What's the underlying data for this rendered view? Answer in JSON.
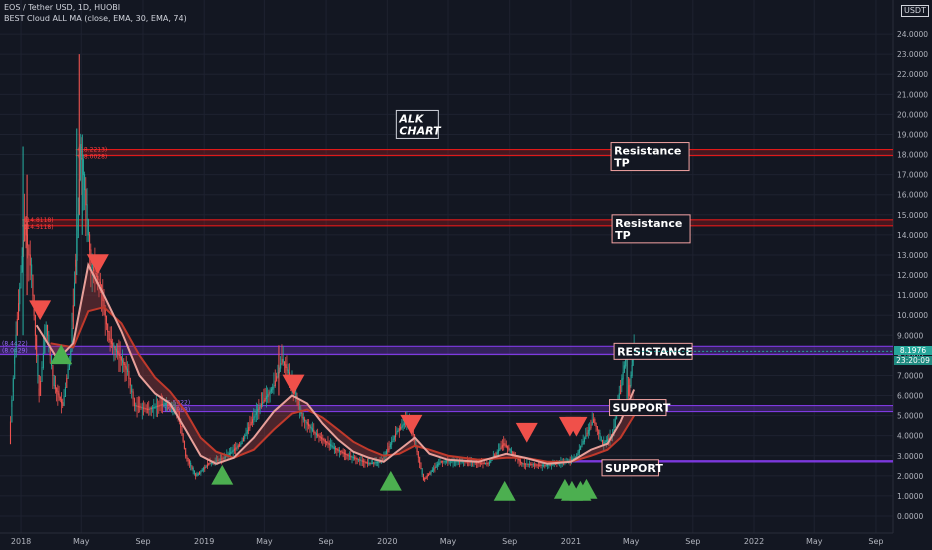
{
  "header": {
    "line1": "EOS / Tether USD, 1D, HUOBI",
    "line2": "BEST Cloud ALL MA (close, EMA, 30, EMA, 74)"
  },
  "unit_label": "USDT",
  "current_price": "8.1976",
  "countdown": "23:20:09",
  "colors": {
    "background": "#131722",
    "resistance": "#e01919",
    "band": "#7e3ae0",
    "up": "#26a69a",
    "down": "#ef5350",
    "cloud_fast": "#e8a09a",
    "cloud_slow": "#c0392b",
    "buy_marker": "#4caf50",
    "sell_marker": "#f0504a"
  },
  "chart_data": {
    "type": "candlestick",
    "title": "EOS / Tether USD, 1D, HUOBI",
    "y_axis": {
      "position": "right",
      "ylim": [
        0,
        25
      ],
      "ticks": [
        "0.0000",
        "1.0000",
        "2.0000",
        "3.0000",
        "4.0000",
        "5.0000",
        "6.0000",
        "7.0000",
        "8.0000",
        "9.0000",
        "10.0000",
        "11.0000",
        "12.0000",
        "13.0000",
        "14.0000",
        "15.0000",
        "16.0000",
        "17.0000",
        "18.0000",
        "19.0000",
        "20.0000",
        "21.0000",
        "22.0000",
        "23.0000",
        "24.0000"
      ]
    },
    "x_axis": {
      "start": "2017-11-20",
      "end": "2022-10-05",
      "ticks": [
        {
          "date": "2018-01-01",
          "label": "2018"
        },
        {
          "date": "2018-05-01",
          "label": "May"
        },
        {
          "date": "2018-09-01",
          "label": "Sep"
        },
        {
          "date": "2019-01-01",
          "label": "2019"
        },
        {
          "date": "2019-05-01",
          "label": "May"
        },
        {
          "date": "2019-09-01",
          "label": "Sep"
        },
        {
          "date": "2020-01-01",
          "label": "2020"
        },
        {
          "date": "2020-05-01",
          "label": "May"
        },
        {
          "date": "2020-09-01",
          "label": "Sep"
        },
        {
          "date": "2021-01-01",
          "label": "2021"
        },
        {
          "date": "2021-05-01",
          "label": "May"
        },
        {
          "date": "2021-09-01",
          "label": "Sep"
        },
        {
          "date": "2022-01-01",
          "label": "2022"
        },
        {
          "date": "2022-05-01",
          "label": "May"
        },
        {
          "date": "2022-09-01",
          "label": "Sep"
        }
      ]
    },
    "price_path": [
      {
        "date": "2017-12-08",
        "value": 3.6
      },
      {
        "date": "2017-12-22",
        "value": 9.0
      },
      {
        "date": "2018-01-08",
        "value": 14.5
      },
      {
        "date": "2018-01-22",
        "value": 12.0
      },
      {
        "date": "2018-02-06",
        "value": 6.0
      },
      {
        "date": "2018-02-20",
        "value": 9.5
      },
      {
        "date": "2018-03-08",
        "value": 6.5
      },
      {
        "date": "2018-03-25",
        "value": 5.5
      },
      {
        "date": "2018-04-10",
        "value": 8.2
      },
      {
        "date": "2018-04-25",
        "value": 15.0
      },
      {
        "date": "2018-04-29",
        "value": 18.5
      },
      {
        "date": "2018-05-05",
        "value": 17.0
      },
      {
        "date": "2018-05-20",
        "value": 12.5
      },
      {
        "date": "2018-06-08",
        "value": 11.5
      },
      {
        "date": "2018-06-25",
        "value": 8.8
      },
      {
        "date": "2018-07-15",
        "value": 8.0
      },
      {
        "date": "2018-08-01",
        "value": 7.2
      },
      {
        "date": "2018-08-15",
        "value": 5.5
      },
      {
        "date": "2018-09-10",
        "value": 5.3
      },
      {
        "date": "2018-10-15",
        "value": 5.6
      },
      {
        "date": "2018-11-10",
        "value": 5.2
      },
      {
        "date": "2018-11-25",
        "value": 3.0
      },
      {
        "date": "2018-12-15",
        "value": 2.0
      },
      {
        "date": "2019-01-10",
        "value": 2.6
      },
      {
        "date": "2019-02-10",
        "value": 2.9
      },
      {
        "date": "2019-03-15",
        "value": 3.6
      },
      {
        "date": "2019-04-15",
        "value": 5.2
      },
      {
        "date": "2019-05-20",
        "value": 6.5
      },
      {
        "date": "2019-06-05",
        "value": 7.8
      },
      {
        "date": "2019-06-20",
        "value": 7.0
      },
      {
        "date": "2019-07-15",
        "value": 4.9
      },
      {
        "date": "2019-08-10",
        "value": 4.1
      },
      {
        "date": "2019-09-15",
        "value": 3.4
      },
      {
        "date": "2019-10-15",
        "value": 3.0
      },
      {
        "date": "2019-11-25",
        "value": 2.6
      },
      {
        "date": "2019-12-20",
        "value": 2.7
      },
      {
        "date": "2020-01-20",
        "value": 4.2
      },
      {
        "date": "2020-02-14",
        "value": 4.9
      },
      {
        "date": "2020-03-13",
        "value": 1.8
      },
      {
        "date": "2020-04-15",
        "value": 2.7
      },
      {
        "date": "2020-06-01",
        "value": 2.7
      },
      {
        "date": "2020-07-20",
        "value": 2.6
      },
      {
        "date": "2020-08-20",
        "value": 3.6
      },
      {
        "date": "2020-09-25",
        "value": 2.6
      },
      {
        "date": "2020-11-10",
        "value": 2.5
      },
      {
        "date": "2020-12-20",
        "value": 2.7
      },
      {
        "date": "2021-01-10",
        "value": 2.9
      },
      {
        "date": "2021-02-15",
        "value": 4.8
      },
      {
        "date": "2021-03-05",
        "value": 3.6
      },
      {
        "date": "2021-03-25",
        "value": 4.0
      },
      {
        "date": "2021-04-10",
        "value": 6.5
      },
      {
        "date": "2021-04-20",
        "value": 7.8
      },
      {
        "date": "2021-04-26",
        "value": 6.0
      },
      {
        "date": "2021-05-03",
        "value": 7.5
      },
      {
        "date": "2021-05-07",
        "value": 8.2
      }
    ],
    "ema_fast": [
      {
        "date": "2018-02-01",
        "value": 9.5
      },
      {
        "date": "2018-03-15",
        "value": 7.8
      },
      {
        "date": "2018-04-15",
        "value": 8.6
      },
      {
        "date": "2018-05-15",
        "value": 12.5
      },
      {
        "date": "2018-06-15",
        "value": 11.0
      },
      {
        "date": "2018-07-20",
        "value": 9.2
      },
      {
        "date": "2018-08-25",
        "value": 7.0
      },
      {
        "date": "2018-09-25",
        "value": 6.1
      },
      {
        "date": "2018-10-25",
        "value": 5.6
      },
      {
        "date": "2018-11-25",
        "value": 4.3
      },
      {
        "date": "2018-12-25",
        "value": 3.0
      },
      {
        "date": "2019-01-25",
        "value": 2.6
      },
      {
        "date": "2019-03-01",
        "value": 2.9
      },
      {
        "date": "2019-04-10",
        "value": 3.9
      },
      {
        "date": "2019-05-20",
        "value": 5.2
      },
      {
        "date": "2019-06-25",
        "value": 6.0
      },
      {
        "date": "2019-07-25",
        "value": 5.6
      },
      {
        "date": "2019-08-25",
        "value": 4.6
      },
      {
        "date": "2019-09-25",
        "value": 3.8
      },
      {
        "date": "2019-10-25",
        "value": 3.2
      },
      {
        "date": "2019-11-25",
        "value": 2.9
      },
      {
        "date": "2019-12-25",
        "value": 2.7
      },
      {
        "date": "2020-01-25",
        "value": 3.3
      },
      {
        "date": "2020-02-25",
        "value": 3.9
      },
      {
        "date": "2020-03-25",
        "value": 3.1
      },
      {
        "date": "2020-05-01",
        "value": 2.8
      },
      {
        "date": "2020-07-01",
        "value": 2.7
      },
      {
        "date": "2020-08-25",
        "value": 3.1
      },
      {
        "date": "2020-10-01",
        "value": 2.9
      },
      {
        "date": "2020-11-15",
        "value": 2.6
      },
      {
        "date": "2021-01-01",
        "value": 2.7
      },
      {
        "date": "2021-02-10",
        "value": 3.3
      },
      {
        "date": "2021-03-15",
        "value": 3.6
      },
      {
        "date": "2021-04-10",
        "value": 4.7
      },
      {
        "date": "2021-05-07",
        "value": 6.3
      }
    ],
    "ema_slow": [
      {
        "date": "2018-03-01",
        "value": 8.6
      },
      {
        "date": "2018-04-15",
        "value": 8.4
      },
      {
        "date": "2018-05-15",
        "value": 10.2
      },
      {
        "date": "2018-06-15",
        "value": 10.4
      },
      {
        "date": "2018-07-20",
        "value": 9.6
      },
      {
        "date": "2018-08-25",
        "value": 8.0
      },
      {
        "date": "2018-09-25",
        "value": 6.9
      },
      {
        "date": "2018-10-25",
        "value": 6.2
      },
      {
        "date": "2018-11-25",
        "value": 5.2
      },
      {
        "date": "2018-12-25",
        "value": 3.9
      },
      {
        "date": "2019-01-25",
        "value": 3.2
      },
      {
        "date": "2019-03-01",
        "value": 2.9
      },
      {
        "date": "2019-04-10",
        "value": 3.3
      },
      {
        "date": "2019-05-20",
        "value": 4.3
      },
      {
        "date": "2019-06-25",
        "value": 5.1
      },
      {
        "date": "2019-07-25",
        "value": 5.3
      },
      {
        "date": "2019-08-25",
        "value": 4.9
      },
      {
        "date": "2019-09-25",
        "value": 4.3
      },
      {
        "date": "2019-10-25",
        "value": 3.7
      },
      {
        "date": "2019-11-25",
        "value": 3.3
      },
      {
        "date": "2019-12-25",
        "value": 3.0
      },
      {
        "date": "2020-01-25",
        "value": 3.1
      },
      {
        "date": "2020-02-25",
        "value": 3.5
      },
      {
        "date": "2020-03-25",
        "value": 3.3
      },
      {
        "date": "2020-05-01",
        "value": 3.0
      },
      {
        "date": "2020-07-01",
        "value": 2.8
      },
      {
        "date": "2020-08-25",
        "value": 2.9
      },
      {
        "date": "2020-10-01",
        "value": 2.9
      },
      {
        "date": "2020-11-15",
        "value": 2.7
      },
      {
        "date": "2021-01-01",
        "value": 2.7
      },
      {
        "date": "2021-02-10",
        "value": 3.0
      },
      {
        "date": "2021-03-15",
        "value": 3.3
      },
      {
        "date": "2021-04-10",
        "value": 3.9
      },
      {
        "date": "2021-05-07",
        "value": 5.0
      }
    ],
    "spikes": [
      {
        "date": "2018-01-05",
        "low": 9.0,
        "high": 18.4
      },
      {
        "date": "2018-01-13",
        "low": 11.0,
        "high": 17.0
      },
      {
        "date": "2018-04-22",
        "low": 12.0,
        "high": 19.3
      },
      {
        "date": "2018-04-27",
        "low": 15.0,
        "high": 23.0
      },
      {
        "date": "2018-05-03",
        "low": 14.0,
        "high": 19.0
      },
      {
        "date": "2019-05-30",
        "low": 6.0,
        "high": 8.5
      },
      {
        "date": "2021-04-23",
        "low": 5.5,
        "high": 8.6
      }
    ],
    "horizontal_levels": [
      {
        "kind": "resistance",
        "value": 18.1,
        "from": "2018-04-20",
        "left_labels": [
          "18.2213",
          "18.0028"
        ]
      },
      {
        "kind": "resistance",
        "value": 14.6,
        "from": "2018-01-03",
        "left_labels": [
          "14.8118",
          "14.5118"
        ]
      },
      {
        "kind": "band",
        "top": 8.45,
        "bottom": 8.05,
        "from": "2017-11-20",
        "left_labels": [
          "8.4422",
          "8.0429"
        ]
      },
      {
        "kind": "band",
        "top": 5.5,
        "bottom": 5.2,
        "from": "2018-10-10",
        "left_labels": [
          "5.5022",
          "5.1988"
        ]
      },
      {
        "kind": "band",
        "top": 2.75,
        "bottom": 2.7,
        "from": "2021-01-01"
      }
    ],
    "annotations": [
      {
        "text_lines": [
          "ALK",
          "CHART"
        ],
        "date": "2020-01-25",
        "value": 19.5,
        "italic": true,
        "border": "#d1d4dc"
      },
      {
        "text_lines": [
          "Resistance",
          "TP"
        ],
        "date": "2021-03-28",
        "value": 17.9,
        "italic": false,
        "border": "#f4a3a3"
      },
      {
        "text_lines": [
          "Resistance",
          "TP"
        ],
        "date": "2021-03-30",
        "value": 14.3,
        "italic": false,
        "border": "#f4a3a3"
      },
      {
        "text_lines": [
          "RESISTANCE"
        ],
        "date": "2021-04-03",
        "value": 8.2,
        "italic": false,
        "border": "#f4a3a3"
      },
      {
        "text_lines": [
          "SUPPORT"
        ],
        "date": "2021-03-25",
        "value": 5.4,
        "italic": false,
        "border": "#f4a3a3"
      },
      {
        "text_lines": [
          "SUPPORT"
        ],
        "date": "2021-03-10",
        "value": 2.4,
        "italic": false,
        "border": "#f4a3a3"
      }
    ],
    "markers": [
      {
        "type": "sell",
        "date": "2018-02-08",
        "value": 10.3
      },
      {
        "type": "buy",
        "date": "2018-03-22",
        "value": 8.0
      },
      {
        "type": "sell",
        "date": "2018-06-03",
        "value": 12.6
      },
      {
        "type": "buy",
        "date": "2019-02-06",
        "value": 2.0
      },
      {
        "type": "sell",
        "date": "2019-06-28",
        "value": 6.6
      },
      {
        "type": "buy",
        "date": "2020-01-08",
        "value": 1.7
      },
      {
        "type": "sell",
        "date": "2020-02-18",
        "value": 4.6
      },
      {
        "type": "buy",
        "date": "2020-08-22",
        "value": 1.2
      },
      {
        "type": "sell",
        "date": "2020-10-05",
        "value": 4.2
      },
      {
        "type": "buy",
        "date": "2020-12-20",
        "value": 1.3
      },
      {
        "type": "sell",
        "date": "2020-12-30",
        "value": 4.5
      },
      {
        "type": "buy",
        "date": "2021-01-03",
        "value": 1.2
      },
      {
        "type": "sell",
        "date": "2021-01-12",
        "value": 4.5
      },
      {
        "type": "buy",
        "date": "2021-01-20",
        "value": 1.2
      },
      {
        "type": "buy",
        "date": "2021-02-01",
        "value": 1.3
      }
    ]
  }
}
